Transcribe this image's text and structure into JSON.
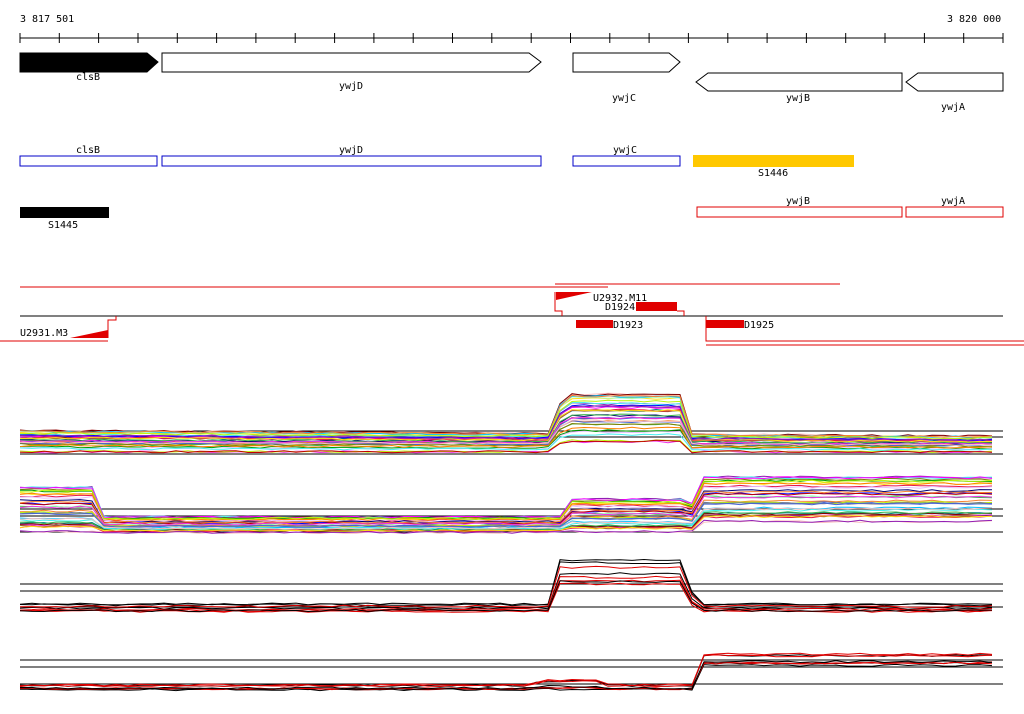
{
  "ruler": {
    "start_label": "3 817 501",
    "end_label": "3 820 000",
    "start": 3817501,
    "end": 3820000
  },
  "genes": [
    {
      "label": "clsB",
      "dir": "right",
      "filled": true
    },
    {
      "label": "ywjD",
      "dir": "right",
      "filled": false
    },
    {
      "label": "ywjC",
      "dir": "right",
      "filled": false
    },
    {
      "label": "ywjB",
      "dir": "left",
      "filled": false
    },
    {
      "label": "ywjA",
      "dir": "left",
      "filled": false
    }
  ],
  "blue_annotations": [
    "clsB",
    "ywjD",
    "ywjC"
  ],
  "segments": [
    {
      "label": "S1446",
      "color": "#ffc800"
    },
    {
      "label": "S1445",
      "color": "#000000"
    }
  ],
  "red_annotations": [
    "ywjB",
    "ywjA"
  ],
  "probes": [
    "U2932.M11",
    "D1924",
    "D1923",
    "D1925",
    "U2931.M3"
  ],
  "colors": {
    "gene_fill": "#000000",
    "blue": "#0000c8",
    "red": "#e00000",
    "yellow": "#ffc800"
  }
}
